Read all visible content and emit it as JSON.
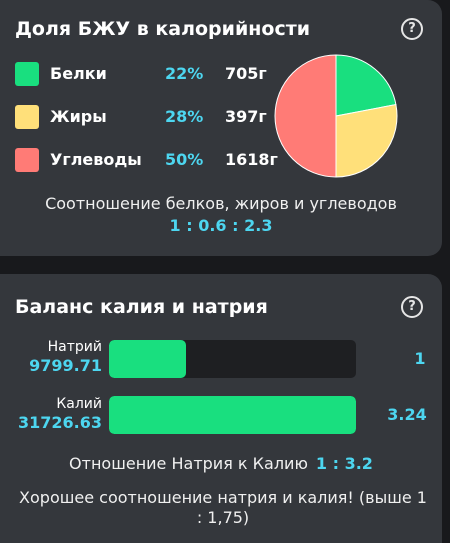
{
  "macros": {
    "title": "Доля БЖУ в калорийности",
    "help_glyph": "?",
    "items": [
      {
        "name": "Белки",
        "percent": "22%",
        "grams": "705г",
        "color": "#19df7f"
      },
      {
        "name": "Жиры",
        "percent": "28%",
        "grams": "397г",
        "color": "#ffe07a"
      },
      {
        "name": "Углеводы",
        "percent": "50%",
        "grams": "1618г",
        "color": "#ff7b76"
      }
    ],
    "ratio_caption": "Соотношение белков, жиров и углеводов",
    "ratio_value": "1 : 0.6 : 2.3"
  },
  "chart_data": {
    "type": "pie",
    "categories": [
      "Белки",
      "Жиры",
      "Углеводы"
    ],
    "values": [
      22,
      28,
      50
    ],
    "colors": [
      "#19df7f",
      "#ffe07a",
      "#ff7b76"
    ]
  },
  "balance": {
    "title": "Баланс калия и натрия",
    "help_glyph": "?",
    "sodium": {
      "label": "Натрий",
      "value": "9799.71",
      "ratio": "1",
      "fill_fraction": 0.31
    },
    "potassium": {
      "label": "Калий",
      "value": "31726.63",
      "ratio": "3.24",
      "fill_fraction": 1.0
    },
    "ratio_caption": "Отношение Натрия к Калию",
    "ratio_value": "1 : 3.2",
    "advice": "Хорошее соотношение натрия и калия! (выше 1 : 1,75)"
  },
  "colors": {
    "accent": "#4dd6f0",
    "bar_fill": "#19df7f",
    "card_bg": "#34373c",
    "page_bg": "#18191c"
  }
}
